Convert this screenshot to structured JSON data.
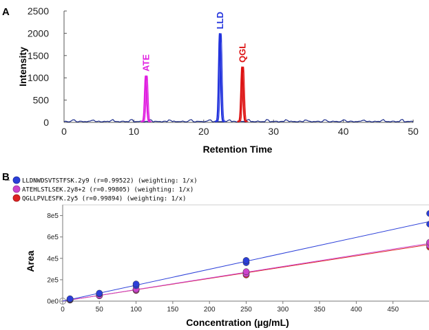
{
  "panel_a_letter": "A",
  "panel_b_letter": "B",
  "chart_data": [
    {
      "type": "line",
      "panel": "A",
      "xlabel": "Retention Time",
      "ylabel": "Intensity",
      "xlim": [
        0,
        50
      ],
      "ylim": [
        0,
        2500
      ],
      "xticks": [
        "0",
        "10",
        "20",
        "30",
        "40",
        "50"
      ],
      "yticks": [
        "0",
        "500",
        "1000",
        "1500",
        "2000",
        "2500"
      ],
      "grid": false,
      "series": [
        {
          "name": "ATE",
          "color": "#e020e0",
          "peak_x": 11.7,
          "peak_y": 1050,
          "baseline": 20
        },
        {
          "name": "LLD",
          "color": "#2233dd",
          "peak_x": 22.3,
          "peak_y": 2000,
          "baseline": 20
        },
        {
          "name": "QGL",
          "color": "#dd1111",
          "peak_x": 25.5,
          "peak_y": 1250,
          "baseline": 20
        }
      ]
    },
    {
      "type": "scatter",
      "panel": "B",
      "xlabel": "Concentration (µg/mL)",
      "ylabel": "Area",
      "xlim": [
        0,
        500
      ],
      "ylim": [
        0,
        900000
      ],
      "xticks": [
        "0",
        "50",
        "100",
        "150",
        "200",
        "250",
        "300",
        "350",
        "400",
        "450"
      ],
      "yticks": [
        "0e0",
        "2e5",
        "4e5",
        "6e5",
        "8e5"
      ],
      "grid": false,
      "legend_position": "top-left",
      "series": [
        {
          "name": "LLDNWDSVTSTFSK.2y9",
          "legend_text": "LLDNWDSVTSTFSK.2y9 (r=0.99522) (weighting: 1/x)",
          "color": "#2b3fd9",
          "slope": 1490,
          "intercept": 0,
          "points": [
            [
              10,
              18000
            ],
            [
              10,
              22000
            ],
            [
              50,
              68000
            ],
            [
              50,
              74000
            ],
            [
              100,
              145000
            ],
            [
              100,
              160000
            ],
            [
              250,
              360000
            ],
            [
              250,
              380000
            ],
            [
              500,
              720000
            ],
            [
              500,
              820000
            ]
          ]
        },
        {
          "name": "ATEHLSTLSEK.2y8+2",
          "legend_text": "ATEHLSTLSEK.2y8+2 (r=0.99805) (weighting: 1/x)",
          "color": "#cc44cc",
          "slope": 1080,
          "intercept": 0,
          "points": [
            [
              10,
              12000
            ],
            [
              10,
              15000
            ],
            [
              50,
              52000
            ],
            [
              100,
              105000
            ],
            [
              100,
              112000
            ],
            [
              250,
              255000
            ],
            [
              250,
              275000
            ],
            [
              500,
              520000
            ],
            [
              500,
              550000
            ]
          ]
        },
        {
          "name": "QGLLPVLESFK.2y5",
          "legend_text": "QGLLPVLESFK.2y5 (r=0.99894) (weighting: 1/x)",
          "color": "#dd2222",
          "slope": 1060,
          "intercept": 0,
          "points": [
            [
              10,
              10000
            ],
            [
              10,
              13000
            ],
            [
              50,
              50000
            ],
            [
              100,
              100000
            ],
            [
              100,
              108000
            ],
            [
              250,
              245000
            ],
            [
              250,
              265000
            ],
            [
              500,
              505000
            ],
            [
              500,
              545000
            ]
          ]
        }
      ]
    }
  ]
}
